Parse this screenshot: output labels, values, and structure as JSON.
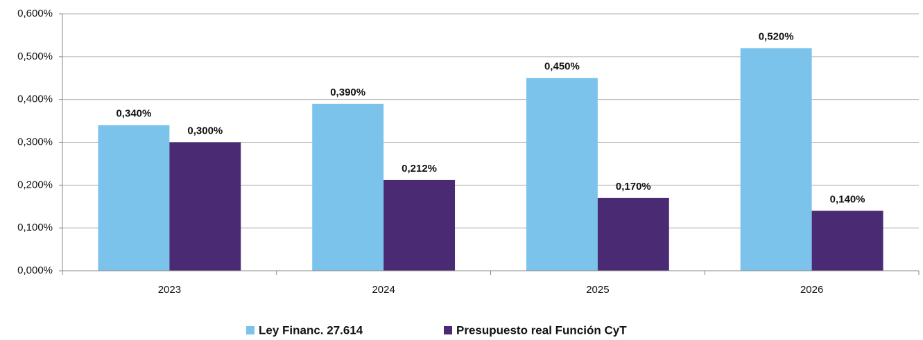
{
  "chart_data": {
    "type": "bar",
    "categories": [
      "2023",
      "2024",
      "2025",
      "2026"
    ],
    "series": [
      {
        "name": "Ley Financ. 27.614",
        "color": "#7cc3ec",
        "values": [
          0.34,
          0.39,
          0.45,
          0.52
        ],
        "value_labels": [
          "0,340%",
          "0,390%",
          "0,450%",
          "0,520%"
        ]
      },
      {
        "name": "Presupuesto real Función CyT",
        "color": "#4a2b73",
        "values": [
          0.3,
          0.212,
          0.17,
          0.14
        ],
        "value_labels": [
          "0,300%",
          "0,212%",
          "0,170%",
          "0,140%"
        ]
      }
    ],
    "ylim": [
      0,
      0.6
    ],
    "yticks": [
      {
        "value": 0,
        "label": "0,000%"
      },
      {
        "value": 0.1,
        "label": "0,100%"
      },
      {
        "value": 0.2,
        "label": "0,200%"
      },
      {
        "value": 0.3,
        "label": "0,300%"
      },
      {
        "value": 0.4,
        "label": "0,400%"
      },
      {
        "value": 0.5,
        "label": "0,500%"
      },
      {
        "value": 0.6,
        "label": "0,600%"
      }
    ],
    "grid": true,
    "legend": "bottom"
  }
}
